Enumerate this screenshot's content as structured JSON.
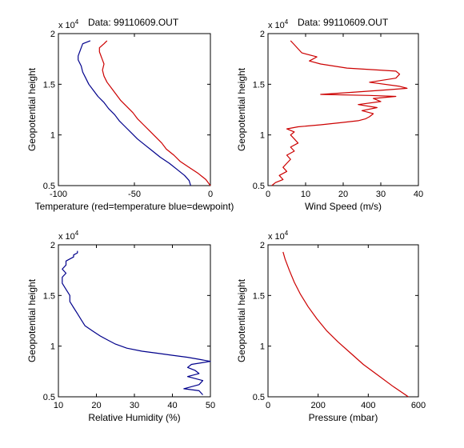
{
  "chart_data": [
    {
      "type": "line",
      "title": "Data: 99110609.OUT",
      "exponent_label": "x 10",
      "exponent_power": "4",
      "xlabel": "Temperature (red=temperature blue=dewpoint)",
      "ylabel": "Geopotential height",
      "xlim": [
        -100,
        0
      ],
      "ylim": [
        0.5,
        2
      ],
      "xticks": [
        "-100",
        "-50",
        "0"
      ],
      "yticks": [
        "0.5",
        "1",
        "1.5",
        "2"
      ],
      "series": [
        {
          "color": "#cc0000",
          "x": [
            0,
            -3,
            -8,
            -14,
            -20,
            -24,
            -29,
            -32,
            -36,
            -40,
            -44,
            -48,
            -51,
            -55,
            -59,
            -62,
            -65,
            -68,
            -70,
            -71,
            -70,
            -71,
            -72,
            -73,
            -73,
            -70,
            -68
          ],
          "y": [
            0.5,
            0.56,
            0.62,
            0.68,
            0.74,
            0.8,
            0.86,
            0.92,
            0.98,
            1.04,
            1.1,
            1.16,
            1.22,
            1.28,
            1.34,
            1.4,
            1.46,
            1.52,
            1.58,
            1.64,
            1.7,
            1.74,
            1.78,
            1.82,
            1.86,
            1.9,
            1.93
          ]
        },
        {
          "color": "#00008b",
          "x": [
            -13,
            -14,
            -17,
            -22,
            -27,
            -33,
            -38,
            -43,
            -48,
            -52,
            -56,
            -60,
            -63,
            -67,
            -70,
            -74,
            -77,
            -80,
            -82,
            -84,
            -85,
            -87,
            -87,
            -86,
            -85,
            -84,
            -79
          ],
          "y": [
            0.5,
            0.55,
            0.6,
            0.66,
            0.72,
            0.78,
            0.84,
            0.9,
            0.96,
            1.02,
            1.08,
            1.14,
            1.2,
            1.26,
            1.32,
            1.38,
            1.44,
            1.5,
            1.56,
            1.62,
            1.68,
            1.74,
            1.78,
            1.82,
            1.86,
            1.9,
            1.93
          ]
        }
      ]
    },
    {
      "type": "line",
      "title": "Data: 99110609.OUT",
      "exponent_label": "x 10",
      "exponent_power": "4",
      "xlabel": "Wind Speed (m/s)",
      "ylabel": "Geopotential height",
      "xlim": [
        0,
        40
      ],
      "ylim": [
        0.5,
        2
      ],
      "xticks": [
        "0",
        "10",
        "20",
        "30",
        "40"
      ],
      "yticks": [
        "0.5",
        "1",
        "1.5",
        "2"
      ],
      "series": [
        {
          "color": "#cc0000",
          "x": [
            1,
            2,
            4,
            3,
            5,
            4,
            5,
            6,
            5,
            7,
            6,
            8,
            7,
            6,
            7,
            5,
            8,
            14,
            19,
            24,
            26,
            27,
            28,
            25,
            29,
            24,
            30,
            28,
            34,
            27,
            14,
            22,
            30,
            37,
            35,
            27,
            34,
            35,
            34,
            21,
            14,
            11,
            13,
            9,
            8,
            7,
            6
          ],
          "y": [
            0.5,
            0.53,
            0.56,
            0.6,
            0.64,
            0.68,
            0.72,
            0.76,
            0.8,
            0.84,
            0.88,
            0.92,
            0.96,
            1.0,
            1.03,
            1.06,
            1.08,
            1.1,
            1.12,
            1.14,
            1.16,
            1.18,
            1.21,
            1.24,
            1.27,
            1.3,
            1.33,
            1.36,
            1.38,
            1.39,
            1.4,
            1.42,
            1.44,
            1.46,
            1.48,
            1.52,
            1.56,
            1.6,
            1.63,
            1.66,
            1.7,
            1.73,
            1.77,
            1.81,
            1.85,
            1.89,
            1.93
          ]
        }
      ]
    },
    {
      "type": "line",
      "title": "",
      "exponent_label": "x 10",
      "exponent_power": "4",
      "xlabel": "Relative Humidity (%)",
      "ylabel": "Geopotential height",
      "xlim": [
        10,
        50
      ],
      "ylim": [
        0.5,
        2
      ],
      "xticks": [
        "10",
        "20",
        "30",
        "40",
        "50"
      ],
      "yticks": [
        "0.5",
        "1",
        "1.5",
        "2"
      ],
      "series": [
        {
          "color": "#00008b",
          "x": [
            48,
            47,
            43,
            47,
            48,
            44,
            47,
            46,
            44,
            45,
            50,
            47,
            44,
            40,
            36,
            32,
            28,
            25,
            23,
            21,
            19,
            17,
            16,
            15,
            14,
            13,
            13,
            12,
            11,
            11,
            12,
            11,
            12,
            12,
            13,
            14,
            14,
            15,
            15
          ],
          "y": [
            0.52,
            0.56,
            0.58,
            0.62,
            0.66,
            0.7,
            0.73,
            0.76,
            0.79,
            0.82,
            0.85,
            0.87,
            0.89,
            0.91,
            0.93,
            0.95,
            0.98,
            1.02,
            1.06,
            1.1,
            1.15,
            1.2,
            1.26,
            1.32,
            1.38,
            1.44,
            1.5,
            1.56,
            1.62,
            1.68,
            1.72,
            1.76,
            1.8,
            1.84,
            1.86,
            1.88,
            1.9,
            1.92,
            1.94
          ]
        }
      ]
    },
    {
      "type": "line",
      "title": "",
      "exponent_label": "x 10",
      "exponent_power": "4",
      "xlabel": "Pressure (mbar)",
      "ylabel": "Geopotential height",
      "xlim": [
        0,
        600
      ],
      "ylim": [
        0.5,
        2
      ],
      "xticks": [
        "0",
        "200",
        "400",
        "600"
      ],
      "yticks": [
        "0.5",
        "1",
        "1.5",
        "2"
      ],
      "series": [
        {
          "color": "#cc0000",
          "x": [
            560,
            500,
            440,
            380,
            330,
            280,
            235,
            195,
            160,
            130,
            105,
            85,
            68,
            60
          ],
          "y": [
            0.5,
            0.6,
            0.71,
            0.82,
            0.93,
            1.04,
            1.15,
            1.27,
            1.39,
            1.51,
            1.63,
            1.75,
            1.86,
            1.93
          ]
        }
      ]
    }
  ]
}
